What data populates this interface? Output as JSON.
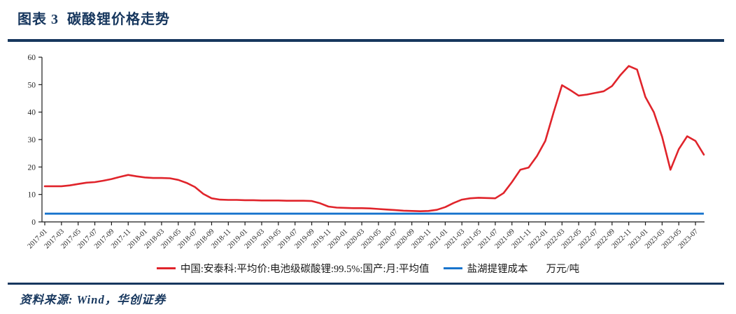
{
  "header": {
    "title": "图表 3  碳酸锂价格走势"
  },
  "source": {
    "label": "资料来源: Wind，华创证券"
  },
  "colors": {
    "navy": "#17375e",
    "red": "#e0242b",
    "blue": "#1874cd",
    "axis": "#1a1a1a",
    "tick_text": "#262626"
  },
  "legend": {
    "series1": "中国:安泰科:平均价:电池级碳酸锂:99.5%:国产:月:平均值",
    "series2": "盐湖提锂成本",
    "unit": "万元/吨"
  },
  "chart_data": {
    "type": "line",
    "title": "碳酸锂价格走势",
    "ylabel": "万元/吨",
    "ylim": [
      0,
      60
    ],
    "ytick_step": 10,
    "xtick_every": 2,
    "grid": false,
    "legend_position": "bottom",
    "x": [
      "2017-01",
      "2017-02",
      "2017-03",
      "2017-04",
      "2017-05",
      "2017-06",
      "2017-07",
      "2017-08",
      "2017-09",
      "2017-10",
      "2017-11",
      "2017-12",
      "2018-01",
      "2018-02",
      "2018-03",
      "2018-04",
      "2018-05",
      "2018-06",
      "2018-07",
      "2018-08",
      "2018-09",
      "2018-10",
      "2018-11",
      "2018-12",
      "2019-01",
      "2019-02",
      "2019-03",
      "2019-04",
      "2019-05",
      "2019-06",
      "2019-07",
      "2019-08",
      "2019-09",
      "2019-10",
      "2019-11",
      "2019-12",
      "2020-01",
      "2020-02",
      "2020-03",
      "2020-04",
      "2020-05",
      "2020-06",
      "2020-07",
      "2020-08",
      "2020-09",
      "2020-10",
      "2020-11",
      "2020-12",
      "2021-01",
      "2021-02",
      "2021-03",
      "2021-04",
      "2021-05",
      "2021-06",
      "2021-07",
      "2021-08",
      "2021-09",
      "2021-10",
      "2021-11",
      "2021-12",
      "2022-01",
      "2022-02",
      "2022-03",
      "2022-04",
      "2022-05",
      "2022-06",
      "2022-07",
      "2022-08",
      "2022-09",
      "2022-10",
      "2022-11",
      "2022-12",
      "2023-01",
      "2023-02",
      "2023-03",
      "2023-04",
      "2023-05",
      "2023-06",
      "2023-07",
      "2023-08"
    ],
    "series": [
      {
        "name": "中国:安泰科:平均价:电池级碳酸锂:99.5%:国产:月:平均值",
        "color": "#e0242b",
        "values": [
          13.0,
          13.0,
          13.0,
          13.3,
          13.8,
          14.3,
          14.5,
          15.0,
          15.6,
          16.4,
          17.1,
          16.6,
          16.2,
          16.0,
          16.0,
          15.9,
          15.3,
          14.2,
          12.7,
          10.2,
          8.6,
          8.1,
          8.0,
          8.0,
          7.9,
          7.9,
          7.8,
          7.8,
          7.8,
          7.7,
          7.7,
          7.7,
          7.6,
          6.8,
          5.6,
          5.2,
          5.1,
          5.0,
          5.0,
          4.9,
          4.7,
          4.5,
          4.3,
          4.1,
          4.0,
          3.9,
          4.0,
          4.4,
          5.4,
          6.9,
          8.1,
          8.6,
          8.8,
          8.7,
          8.6,
          10.5,
          14.5,
          19.0,
          19.8,
          24.0,
          29.5,
          40.0,
          49.8,
          48.0,
          46.0,
          46.4,
          47.0,
          47.6,
          49.5,
          53.5,
          56.8,
          55.5,
          45.5,
          40.0,
          31.0,
          19.0,
          26.5,
          31.2,
          29.5,
          24.5
        ]
      },
      {
        "name": "盐湖提锂成本",
        "color": "#1874cd",
        "constant": 3.0
      }
    ]
  }
}
